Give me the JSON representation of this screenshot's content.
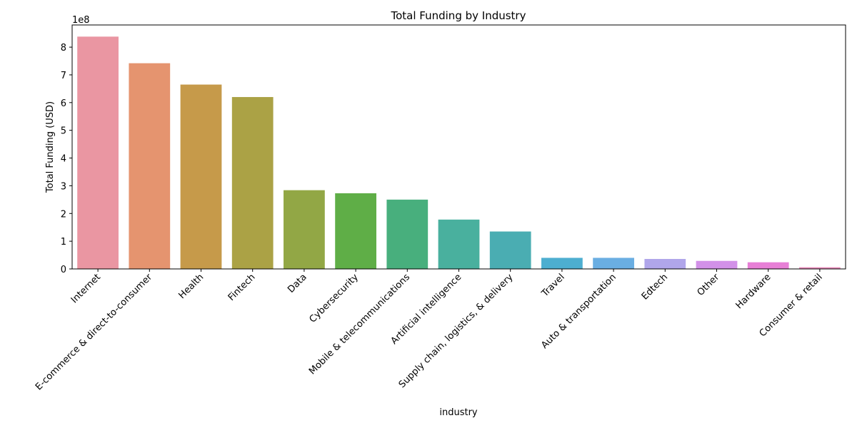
{
  "chart_data": {
    "type": "bar",
    "title": "Total Funding by Industry",
    "xlabel": "industry",
    "ylabel": "Total Funding (USD)",
    "y_offset_label": "1e8",
    "ylim": [
      0,
      880000000
    ],
    "yticks": [
      0,
      100000000,
      200000000,
      300000000,
      400000000,
      500000000,
      600000000,
      700000000,
      800000000
    ],
    "ytick_labels": [
      "0",
      "1",
      "2",
      "3",
      "4",
      "5",
      "6",
      "7",
      "8"
    ],
    "grid": false,
    "categories": [
      "Internet",
      "E-commerce & direct-to-consumer",
      "Health",
      "Fintech",
      "Data",
      "Cybersecurity",
      "Mobile & telecommunications",
      "Artificial intelligence",
      "Supply chain, logistics, & delivery",
      "Travel",
      "Auto & transportation",
      "Edtech",
      "Other",
      "Hardware",
      "Consumer & retail"
    ],
    "values": [
      838000000,
      742000000,
      665000000,
      620000000,
      284000000,
      273000000,
      250000000,
      178000000,
      135000000,
      40000000,
      40000000,
      36000000,
      29000000,
      24000000,
      6000000
    ],
    "colors": [
      "#ea96a2",
      "#e5946f",
      "#c69a4a",
      "#aba245",
      "#92a745",
      "#5fae47",
      "#48af7d",
      "#49b09e",
      "#4aadb2",
      "#4daed0",
      "#6aaee2",
      "#b0a6ea",
      "#d291e8",
      "#e77fd6",
      "#e88bbb"
    ]
  }
}
